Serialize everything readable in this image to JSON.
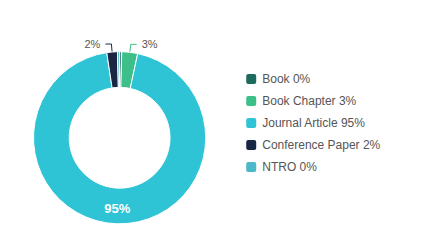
{
  "chart_data": {
    "type": "pie",
    "categories": [
      "Book 0%",
      "Book Chapter 3%",
      "Journal Article 95%",
      "Conference Paper 2%",
      "NTRO 0%"
    ],
    "values": [
      0.4,
      3,
      95,
      2,
      0.4
    ],
    "value_labels": [
      null,
      "3%",
      "95%",
      "2%",
      null
    ],
    "colors": [
      "#1e6b5e",
      "#3dbf8a",
      "#2ec4d6",
      "#1a2744",
      "#4ab8c8"
    ],
    "data_labels": true,
    "legend": "right"
  }
}
